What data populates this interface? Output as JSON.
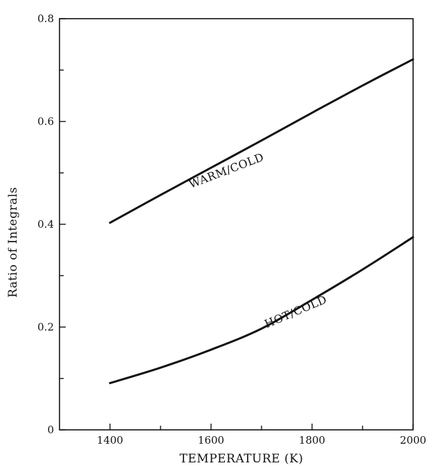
{
  "chart_data": {
    "type": "line",
    "xlabel": "TEMPERATURE (K)",
    "ylabel": "Ratio of Integrals",
    "xlim": [
      1300,
      2000
    ],
    "ylim": [
      0,
      0.8
    ],
    "x_ticks": [
      1400,
      1600,
      1800,
      2000
    ],
    "x_tick_labels": [
      "1400",
      "1600",
      "1800",
      "2000"
    ],
    "x_minor_ticks": [
      1500,
      1700,
      1900
    ],
    "y_ticks": [
      0,
      0.2,
      0.4,
      0.6,
      0.8
    ],
    "y_tick_labels": [
      "0",
      "0.2",
      "0.4",
      "0.6",
      "0.8"
    ],
    "y_minor_ticks": [
      0.1,
      0.3,
      0.5,
      0.7
    ],
    "grid": false,
    "series": [
      {
        "name": "WARM/COLD",
        "x": [
          1400,
          1500,
          1600,
          1700,
          1800,
          1900,
          2000
        ],
        "y": [
          0.403,
          0.457,
          0.51,
          0.563,
          0.617,
          0.67,
          0.721
        ],
        "label_at": [
          1560,
          0.47
        ],
        "label_angle_deg": -21
      },
      {
        "name": "HOT/COLD",
        "x": [
          1400,
          1500,
          1600,
          1700,
          1800,
          1900,
          2000
        ],
        "y": [
          0.091,
          0.121,
          0.156,
          0.197,
          0.253,
          0.312,
          0.375
        ],
        "label_at": [
          1710,
          0.198
        ],
        "label_angle_deg": -23
      }
    ]
  }
}
